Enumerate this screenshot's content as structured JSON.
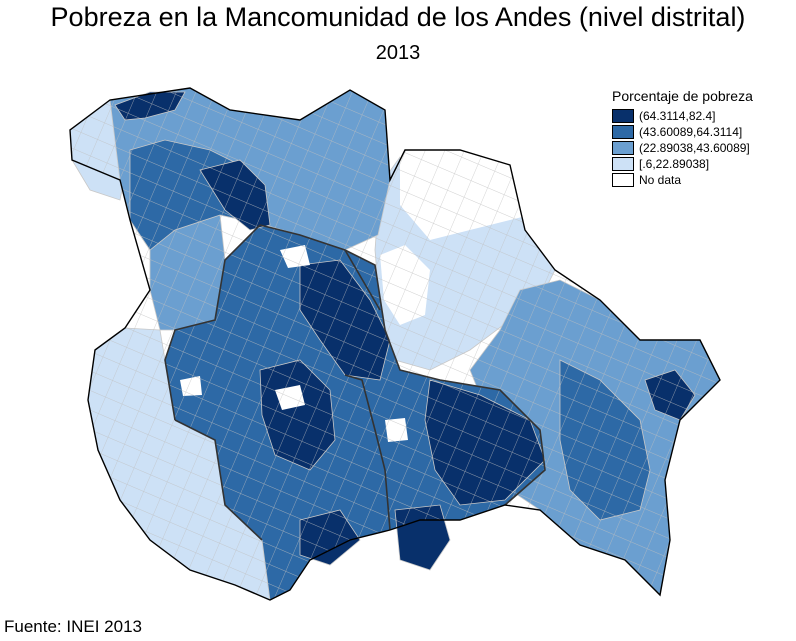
{
  "header": {
    "title": "Pobreza en la Mancomunidad de los Andes (nivel distrital)",
    "year": "2013"
  },
  "legend": {
    "title": "Porcentaje de pobreza",
    "items": [
      {
        "label": "(64.3114,82.4]",
        "color": "#08306b"
      },
      {
        "label": "(43.60089,64.3114]",
        "color": "#2d69a6"
      },
      {
        "label": "(22.89038,43.60089]",
        "color": "#6b9fd0"
      },
      {
        "label": "[.6,22.89038]",
        "color": "#cde1f6"
      },
      {
        "label": "No data",
        "color": "#ffffff"
      }
    ]
  },
  "footer": {
    "source": "Fuente: INEI 2013"
  }
}
